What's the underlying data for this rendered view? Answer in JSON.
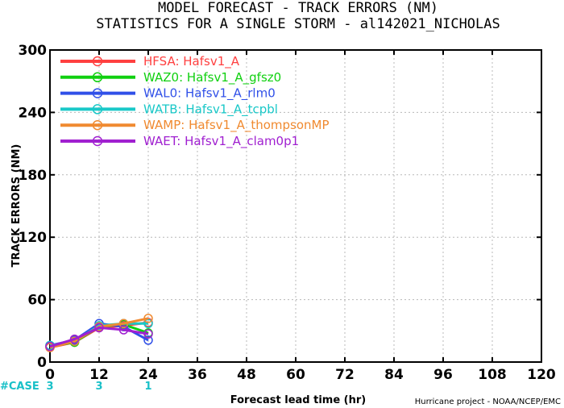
{
  "chart_data": {
    "type": "line",
    "title": "MODEL FORECAST - TRACK ERRORS (NM)",
    "subtitle": "STATISTICS FOR A SINGLE STORM - al142021_NICHOLAS",
    "xlabel": "Forecast lead time (hr)",
    "ylabel": "TRACK ERRORS (NM)",
    "xlim": [
      0,
      120
    ],
    "ylim": [
      0,
      300
    ],
    "x_ticks": [
      "0",
      "12",
      "24",
      "36",
      "48",
      "60",
      "72",
      "84",
      "96",
      "108",
      "120"
    ],
    "y_ticks": [
      "0",
      "60",
      "120",
      "180",
      "240",
      "300"
    ],
    "grid": true,
    "legend_position": "top-left",
    "x": [
      0,
      6,
      12,
      18,
      24
    ],
    "series": [
      {
        "name": "HFSA: Hafsv1_A",
        "color": "#ff4040",
        "values": [
          14,
          19,
          33,
          35,
          38
        ]
      },
      {
        "name": "WAZ0: Hafsv1_A_gfsz0",
        "color": "#10d010",
        "values": [
          15,
          19,
          34,
          36,
          28
        ]
      },
      {
        "name": "WAL0: Hafsv1_A_rlm0",
        "color": "#3050e8",
        "values": [
          16,
          21,
          37,
          34,
          21
        ]
      },
      {
        "name": "WATB: Hafsv1_A_tcpbl",
        "color": "#19c8c8",
        "values": [
          16,
          20,
          35,
          37,
          37
        ]
      },
      {
        "name": "WAMP: Hafsv1_A_thompsonMP",
        "color": "#f08a30",
        "values": [
          14,
          20,
          34,
          37,
          42
        ]
      },
      {
        "name": "WAET: Hafsv1_A_clam0p1",
        "color": "#a020d0",
        "values": [
          15,
          22,
          33,
          31,
          27
        ]
      }
    ],
    "cases": {
      "label": "#CASE",
      "x": [
        0,
        12,
        24
      ],
      "values": [
        "3",
        "3",
        "1"
      ]
    },
    "credit": "Hurricane project - NOAA/NCEP/EMC"
  }
}
